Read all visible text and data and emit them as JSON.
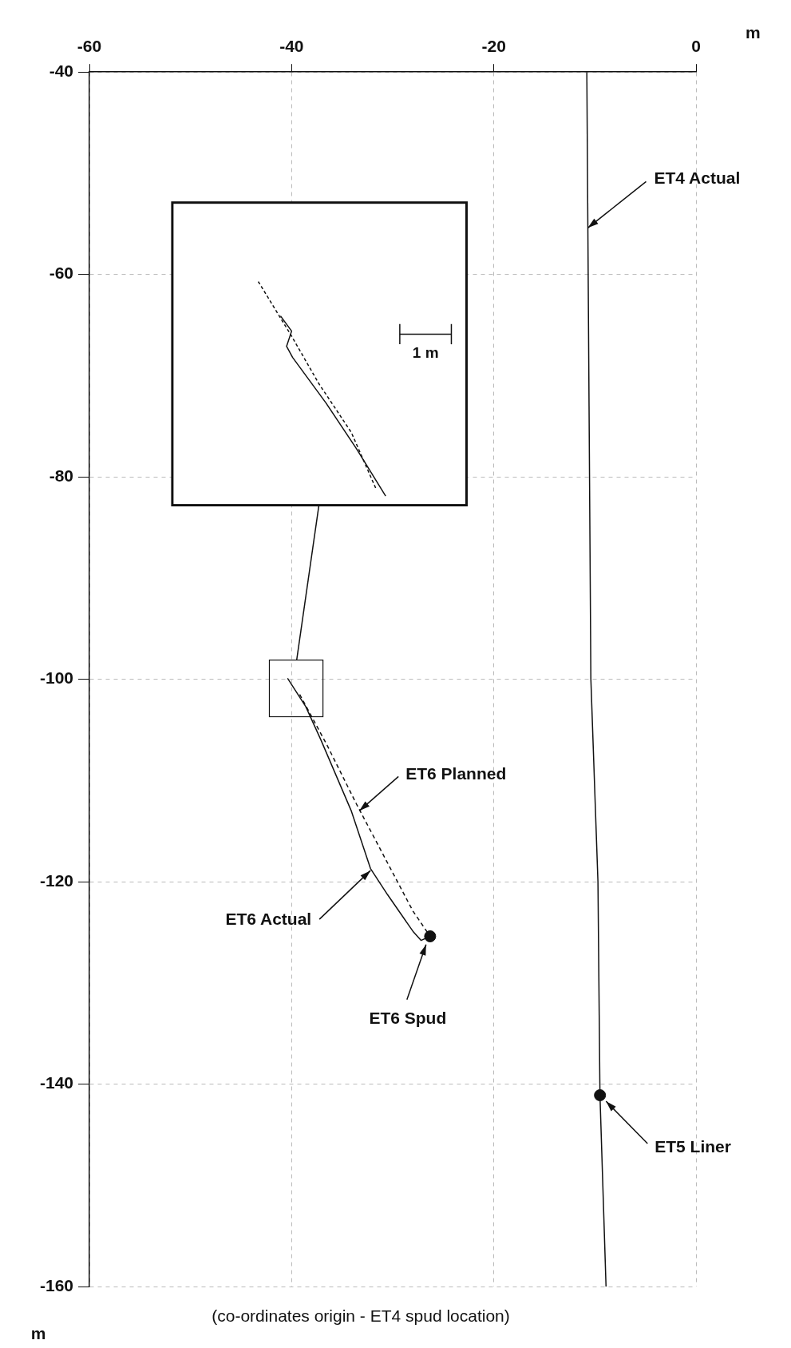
{
  "chart_data": {
    "type": "line",
    "xlabel": "m",
    "ylabel": "m",
    "xlim": [
      -60,
      0
    ],
    "xticks": [
      -60,
      -40,
      -20,
      0
    ],
    "ylim": [
      -160,
      -40
    ],
    "yticks": [
      -40,
      -60,
      -80,
      -100,
      -120,
      -140,
      -160
    ],
    "grid": true,
    "series": [
      {
        "color": "#111111",
        "line_style": "solid",
        "marker": "none",
        "x": [
          -10.8,
          -10.6,
          -10.4,
          -9.7,
          -9.5,
          -8.9
        ],
        "values": [
          -40,
          -70,
          -100,
          -120,
          -141.1,
          -160
        ]
      },
      {
        "color": "#111111",
        "line_style": "dashed",
        "marker": "none",
        "x": [
          -39.2,
          -36.5,
          -33.6,
          -28.0,
          -26.3
        ],
        "values": [
          -101.5,
          -106.5,
          -112.3,
          -122.9,
          -125.4
        ]
      },
      {
        "color": "#111111",
        "line_style": "solid",
        "marker": "none",
        "x": [
          -40.4,
          -38.6,
          -37.1,
          -34.1,
          -32.2,
          -30.5,
          -28.0,
          -27.2,
          -26.3
        ],
        "values": [
          -99.9,
          -102.7,
          -106.0,
          -113.0,
          -118.7,
          -121.3,
          -124.9,
          -125.8,
          -125.4
        ]
      },
      {
        "type": "scatter",
        "color": "#111111",
        "marker": "circle",
        "x": [
          -26.3
        ],
        "values": [
          -125.4
        ]
      },
      {
        "type": "scatter",
        "color": "#111111",
        "marker": "circle",
        "x": [
          -9.5
        ],
        "values": [
          -141.1
        ]
      }
    ],
    "annotations": [
      {
        "text": "ET4 Actual",
        "x": -10.7,
        "y": -55.4
      },
      {
        "text": "ET6 Planned",
        "x": -33.3,
        "y": -113.0
      },
      {
        "text": "ET6 Actual",
        "x": -32.2,
        "y": -118.9
      },
      {
        "text": "ET6 Spud",
        "x": -26.7,
        "y": -126.2
      },
      {
        "text": "ET5 Liner",
        "x": -8.9,
        "y": -141.7
      },
      "1 m",
      "(co-ordinates origin - ET4 spud location)"
    ]
  }
}
